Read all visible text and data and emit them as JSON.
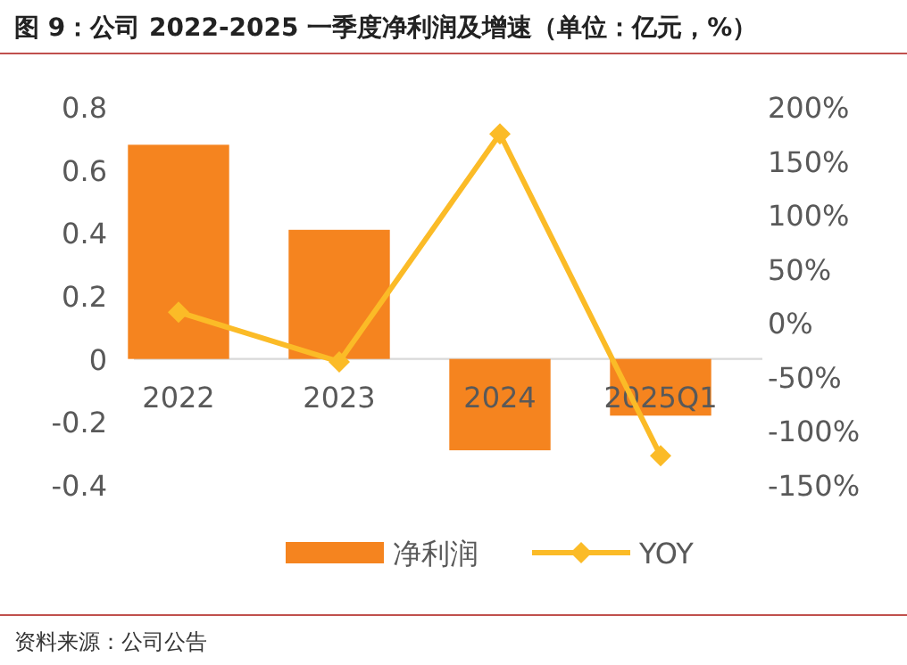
{
  "chart_data": {
    "type": "bar",
    "title": "图 9：公司 2022-2025 一季度净利润及增速（单位：亿元，%）",
    "categories": [
      "2022",
      "2023",
      "2024",
      "2025Q1"
    ],
    "series": [
      {
        "name": "净利润",
        "color": "#f5841f",
        "values": [
          0.68,
          0.41,
          -0.29,
          -0.18
        ]
      },
      {
        "name": "YOY",
        "type": "line",
        "axis": "y2",
        "color": "#fbbb27",
        "marker": "diamond",
        "values": [
          10,
          -36,
          175,
          -123
        ]
      }
    ],
    "ylim": [
      -0.4,
      0.8
    ],
    "yticks": [
      -0.4,
      -0.2,
      0,
      0.2,
      0.4,
      0.6,
      0.8
    ],
    "y2lim": [
      -150,
      200
    ],
    "y2ticks": [
      {
        "value": -150,
        "label": "-150%"
      },
      {
        "value": -100,
        "label": "-100%"
      },
      {
        "value": -50,
        "label": "-50%"
      },
      {
        "value": 0,
        "label": "0%"
      },
      {
        "value": 50,
        "label": "50%"
      },
      {
        "value": 100,
        "label": "100%"
      },
      {
        "value": 150,
        "label": "150%"
      },
      {
        "value": 200,
        "label": "200%"
      }
    ],
    "legend": "bottom",
    "annotations": [
      "资料来源：公司公告"
    ]
  }
}
